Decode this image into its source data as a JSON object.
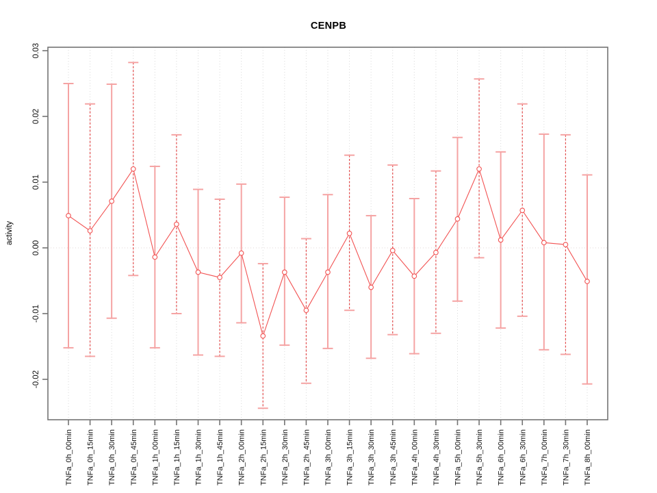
{
  "chart_data": {
    "type": "line",
    "title": "CENPB",
    "ylabel": "activity",
    "xlabel": "",
    "ylim": [
      -0.026,
      0.0305
    ],
    "yticks": [
      "0.03",
      "0.02",
      "0.01",
      "0.00",
      "-0.01",
      "-0.02"
    ],
    "ytick_values": [
      0.03,
      0.02,
      0.01,
      0.0,
      -0.01,
      -0.02
    ],
    "grid": {
      "vertical_dotted_per_category": true,
      "horizontal_dotted_zero_line": true
    },
    "legend_position": "none",
    "categories": [
      "TNFa_0h_00min",
      "TNFa_0h_15min",
      "TNFa_0h_30min",
      "TNFa_0h_45min",
      "TNFa_1h_00min",
      "TNFa_1h_15min",
      "TNFa_1h_30min",
      "TNFa_1h_45min",
      "TNFa_2h_00min",
      "TNFa_2h_15min",
      "TNFa_2h_30min",
      "TNFa_2h_45min",
      "TNFa_3h_00min",
      "TNFa_3h_15min",
      "TNFa_3h_30min",
      "TNFa_3h_45min",
      "TNFa_4h_00min",
      "TNFa_4h_30min",
      "TNFa_5h_00min",
      "TNFa_5h_30min",
      "TNFa_6h_00min",
      "TNFa_6h_30min",
      "TNFa_7h_00min",
      "TNFa_7h_30min",
      "TNFa_8h_00min"
    ],
    "series": [
      {
        "name": "activity",
        "marker": "open-circle",
        "values": [
          0.0049,
          0.0026,
          0.0071,
          0.012,
          -0.0014,
          0.0036,
          -0.0037,
          -0.0045,
          -0.0008,
          -0.0134,
          -0.0037,
          -0.0095,
          -0.0037,
          0.0022,
          -0.006,
          -0.0004,
          -0.0043,
          -0.0007,
          0.0044,
          0.012,
          0.0012,
          0.0057,
          0.0008,
          0.0005,
          -0.0051
        ],
        "ci_upper": [
          0.025,
          0.0219,
          0.0249,
          0.0282,
          0.0124,
          0.0172,
          0.0089,
          0.0074,
          0.0097,
          -0.0024,
          0.0077,
          0.0014,
          0.0081,
          0.0141,
          0.0049,
          0.0126,
          0.0075,
          0.0117,
          0.0168,
          0.0257,
          0.0146,
          0.0219,
          0.0173,
          0.0172,
          0.0111
        ],
        "ci_lower": [
          -0.0152,
          -0.0165,
          -0.0107,
          -0.0042,
          -0.0152,
          -0.01,
          -0.0163,
          -0.0165,
          -0.0114,
          -0.0244,
          -0.0148,
          -0.0206,
          -0.0153,
          -0.0095,
          -0.0168,
          -0.0132,
          -0.0161,
          -0.013,
          -0.0081,
          -0.0015,
          -0.0122,
          -0.0104,
          -0.0155,
          -0.0162,
          -0.0207
        ]
      }
    ],
    "error_bar_style": {
      "odd_categories": "solid",
      "even_categories": "dashed",
      "caps": "solid"
    },
    "colors": {
      "line": "#f25252",
      "marker": "#f25252",
      "error_bar_solid": "#f5a3a3",
      "error_bar_dashed": "#e34c4c",
      "error_bar_cap": "#f5a3a3",
      "gridline": "#d9d9d9",
      "zero_line": "#e0d4d4",
      "frame": "#737373",
      "tick_text": "#111111",
      "background": "#ffffff"
    }
  }
}
